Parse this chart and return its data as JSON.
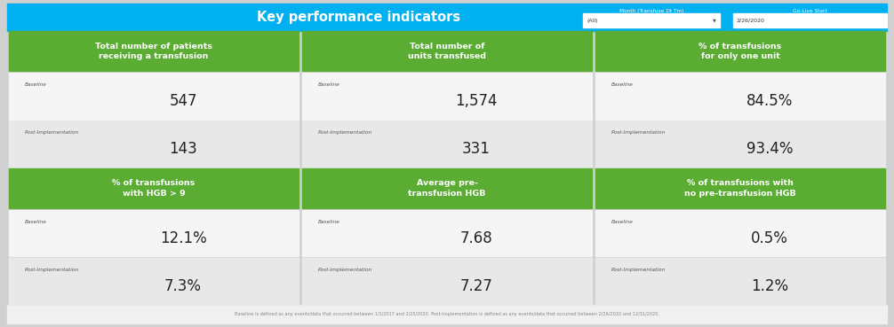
{
  "title": "Key performance indicators",
  "title_bg": "#00b0f0",
  "header_green": "#5aac32",
  "cell_bg_light": "#f5f5f5",
  "cell_bg_dark": "#e8e8e8",
  "top_bar_color": "#00b0f0",
  "footer_text": "Baseline is defined as any events/data that occurred between 1/1/2017 and 2/25/2020. Post-Implementation is defined as any events/data that occurred between 2/26/2020 and 12/31/2020.",
  "filter_label1": "Month (Transfuse Dt Tm)",
  "filter_label2": "Go-Live Start",
  "filter_val1": "(All)",
  "filter_val2": "2/26/2020",
  "rows": [
    {
      "headers": [
        "Total number of patients\nreceiving a transfusion",
        "Total number of\nunits transfused",
        "% of transfusions\nfor only one unit"
      ],
      "baseline_values": [
        "547",
        "1,574",
        "84.5%"
      ],
      "post_values": [
        "143",
        "331",
        "93.4%"
      ]
    },
    {
      "headers": [
        "% of transfusions\nwith HGB > 9",
        "Average pre-\ntransfusion HGB",
        "% of transfusions with\nno pre-transfusion HGB"
      ],
      "baseline_values": [
        "12.1%",
        "7.68",
        "0.5%"
      ],
      "post_values": [
        "7.3%",
        "7.27",
        "1.2%"
      ]
    }
  ]
}
